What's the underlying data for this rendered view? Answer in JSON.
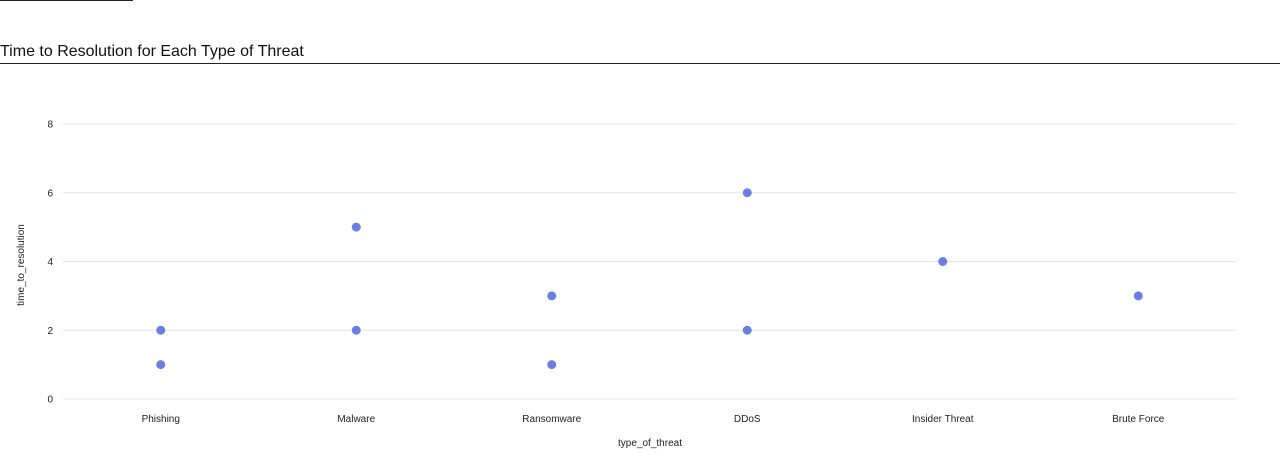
{
  "chart_data": {
    "type": "scatter",
    "title": "Time to Resolution for Each Type of Threat",
    "xlabel": "type_of_threat",
    "ylabel": "time_to_resolution",
    "categories": [
      "Phishing",
      "Malware",
      "Ransomware",
      "DDoS",
      "Insider Threat",
      "Brute Force"
    ],
    "points": [
      {
        "x": "Phishing",
        "y": 2
      },
      {
        "x": "Phishing",
        "y": 1
      },
      {
        "x": "Malware",
        "y": 5
      },
      {
        "x": "Malware",
        "y": 2
      },
      {
        "x": "Ransomware",
        "y": 3
      },
      {
        "x": "Ransomware",
        "y": 1
      },
      {
        "x": "DDoS",
        "y": 6
      },
      {
        "x": "DDoS",
        "y": 2
      },
      {
        "x": "Insider Threat",
        "y": 4
      },
      {
        "x": "Brute Force",
        "y": 3
      }
    ],
    "y_ticks": [
      0,
      2,
      4,
      6,
      8
    ],
    "ylim": [
      0,
      8
    ],
    "grid": true,
    "legend": "none",
    "marker_color": "#6b7fe3",
    "grid_color": "#e6e6e6"
  }
}
